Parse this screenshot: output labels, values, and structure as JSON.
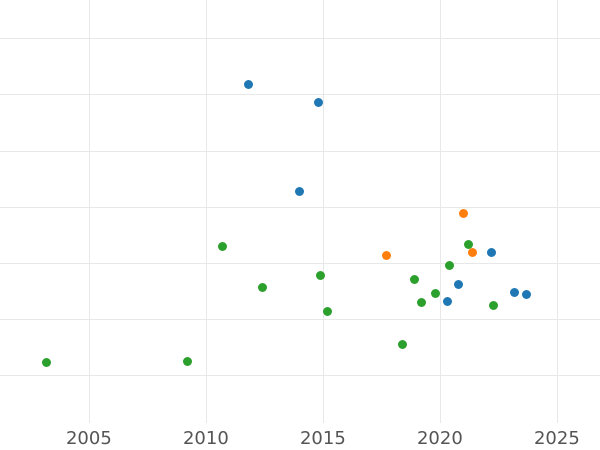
{
  "chart_data": {
    "type": "scatter",
    "title": "",
    "xlabel": "",
    "ylabel": "",
    "grid": true,
    "legend_position": "none",
    "x_ticks": [
      2005,
      2010,
      2015,
      2020,
      2025
    ],
    "x_tick_labels": [
      "2005",
      "2010",
      "2015",
      "2020",
      "2025"
    ],
    "xlim": [
      2001.2,
      2026.84
    ],
    "ylim": [
      0.15,
      7.68
    ],
    "y_gridlines": [
      1,
      2,
      3,
      4,
      5,
      6,
      7
    ],
    "y_units": "gridline-units (y-axis tick labels not visible in view; 1 unit per horizontal gridline)",
    "series": [
      {
        "name": "blue",
        "color": "#1f77b4",
        "points": [
          {
            "x": 2011.8,
            "y": 6.17
          },
          {
            "x": 2014.8,
            "y": 5.85
          },
          {
            "x": 2014.0,
            "y": 4.27
          },
          {
            "x": 2020.3,
            "y": 2.32
          },
          {
            "x": 2020.8,
            "y": 2.62
          },
          {
            "x": 2022.2,
            "y": 3.19
          },
          {
            "x": 2023.2,
            "y": 2.48
          },
          {
            "x": 2023.7,
            "y": 2.43
          }
        ]
      },
      {
        "name": "orange",
        "color": "#ff7f0e",
        "points": [
          {
            "x": 2017.7,
            "y": 3.13
          },
          {
            "x": 2021.0,
            "y": 3.88
          },
          {
            "x": 2021.4,
            "y": 3.19
          }
        ]
      },
      {
        "name": "green",
        "color": "#2ca02c",
        "points": [
          {
            "x": 2003.2,
            "y": 1.23
          },
          {
            "x": 2009.2,
            "y": 1.24
          },
          {
            "x": 2010.7,
            "y": 3.29
          },
          {
            "x": 2012.4,
            "y": 2.56
          },
          {
            "x": 2014.9,
            "y": 2.77
          },
          {
            "x": 2015.2,
            "y": 2.13
          },
          {
            "x": 2018.4,
            "y": 1.55
          },
          {
            "x": 2018.9,
            "y": 2.71
          },
          {
            "x": 2019.2,
            "y": 2.29
          },
          {
            "x": 2019.8,
            "y": 2.46
          },
          {
            "x": 2020.4,
            "y": 2.95
          },
          {
            "x": 2021.2,
            "y": 3.33
          },
          {
            "x": 2022.3,
            "y": 2.24
          }
        ]
      }
    ],
    "colors": {
      "background": "#ffffff",
      "gridline": "#e8e8e8",
      "tick_label": "#555555"
    }
  }
}
